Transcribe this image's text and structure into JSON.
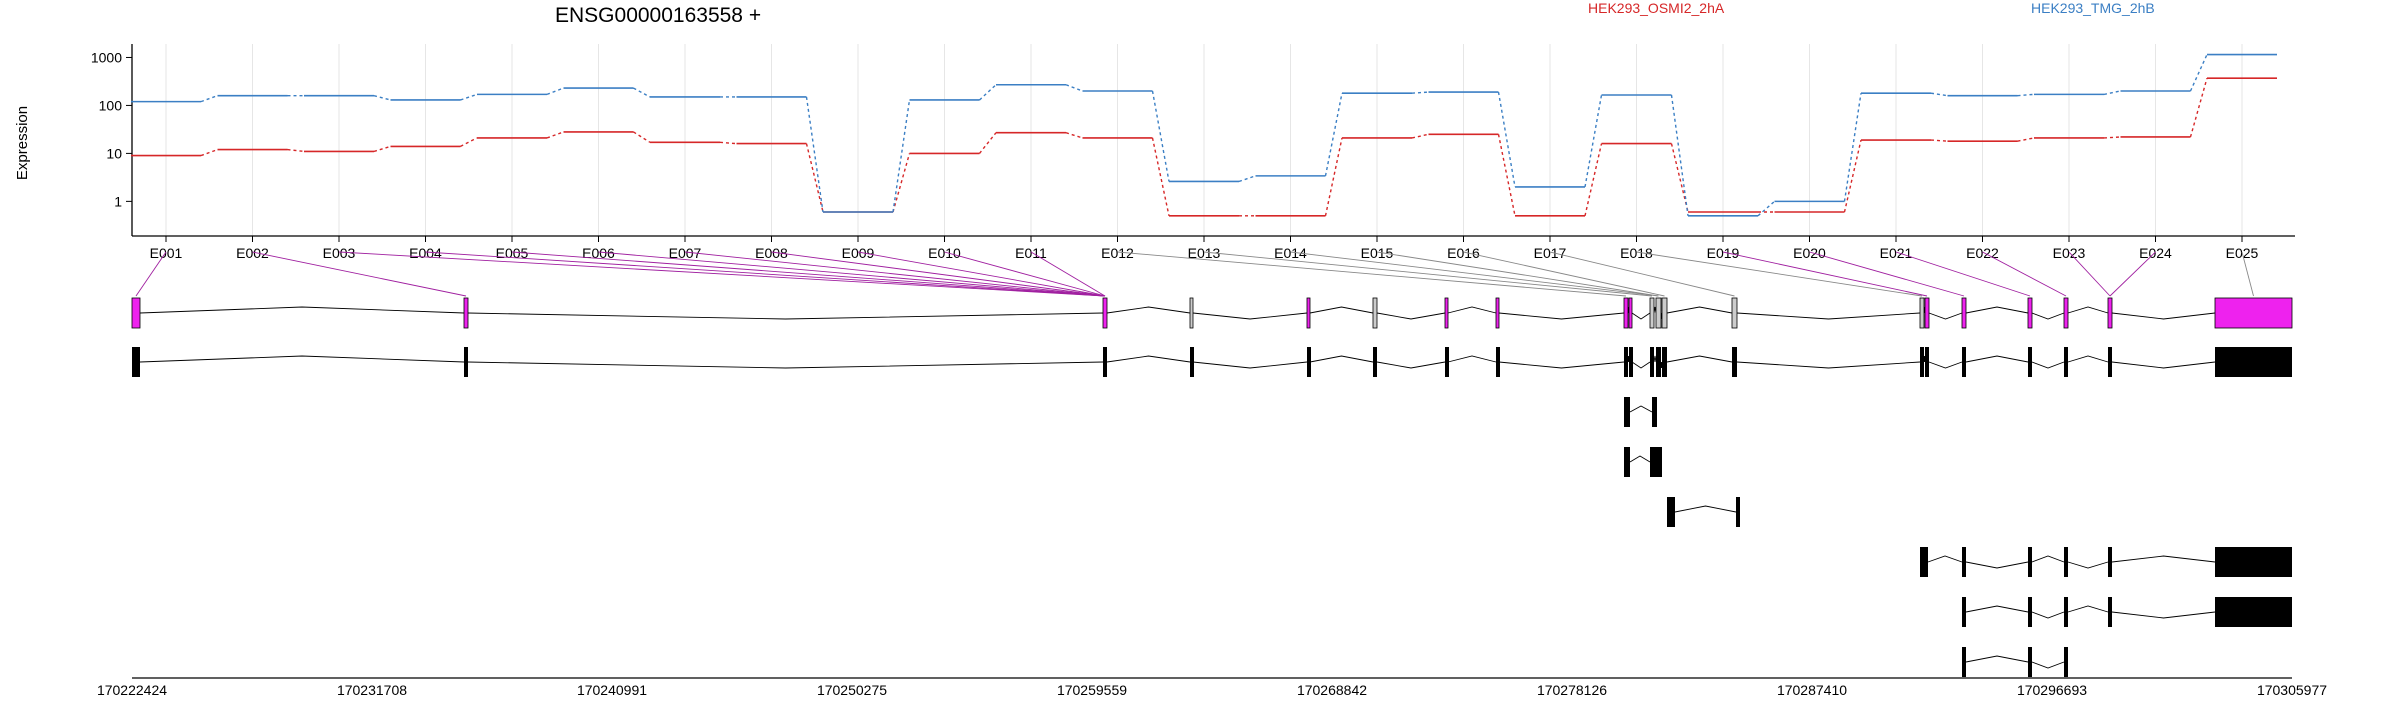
{
  "chart_data": {
    "type": "line",
    "title": "ENSG00000163558 +",
    "ylabel": "Expression",
    "y_scale": "log",
    "yticks": [
      1,
      10,
      100,
      1000
    ],
    "ytick_labels": [
      "1",
      "10",
      "100",
      "1000"
    ],
    "categories": [
      "E001",
      "E002",
      "E003",
      "E004",
      "E005",
      "E006",
      "E007",
      "E008",
      "E009",
      "E010",
      "E011",
      "E012",
      "E013",
      "E014",
      "E015",
      "E016",
      "E017",
      "E018",
      "E019",
      "E020",
      "E021",
      "E022",
      "E023",
      "E024",
      "E025"
    ],
    "legend_placement": "top",
    "grid": "vertical",
    "series": [
      {
        "name": "HEK293_OSMI2_2hA",
        "color": "#d62728",
        "values": [
          9,
          12,
          11,
          14,
          21,
          28,
          17,
          16,
          0.6,
          10,
          27,
          21,
          0.5,
          0.5,
          21,
          25,
          0.5,
          16,
          0.6,
          0.6,
          19,
          18,
          21,
          22,
          370
        ]
      },
      {
        "name": "HEK293_TMG_2hB",
        "color": "#3b7fc4",
        "values": [
          120,
          160,
          160,
          130,
          170,
          230,
          150,
          150,
          0.6,
          130,
          270,
          200,
          2.6,
          3.4,
          180,
          190,
          2.0,
          165,
          0.5,
          1.0,
          180,
          160,
          170,
          200,
          1150
        ]
      }
    ],
    "genome_coordinates": [
      "170222424",
      "170231708",
      "170240991",
      "170250275",
      "170259559",
      "170268842",
      "170278126",
      "170287410",
      "170296693",
      "170305977"
    ],
    "highlight_color": "#ee22ee"
  }
}
